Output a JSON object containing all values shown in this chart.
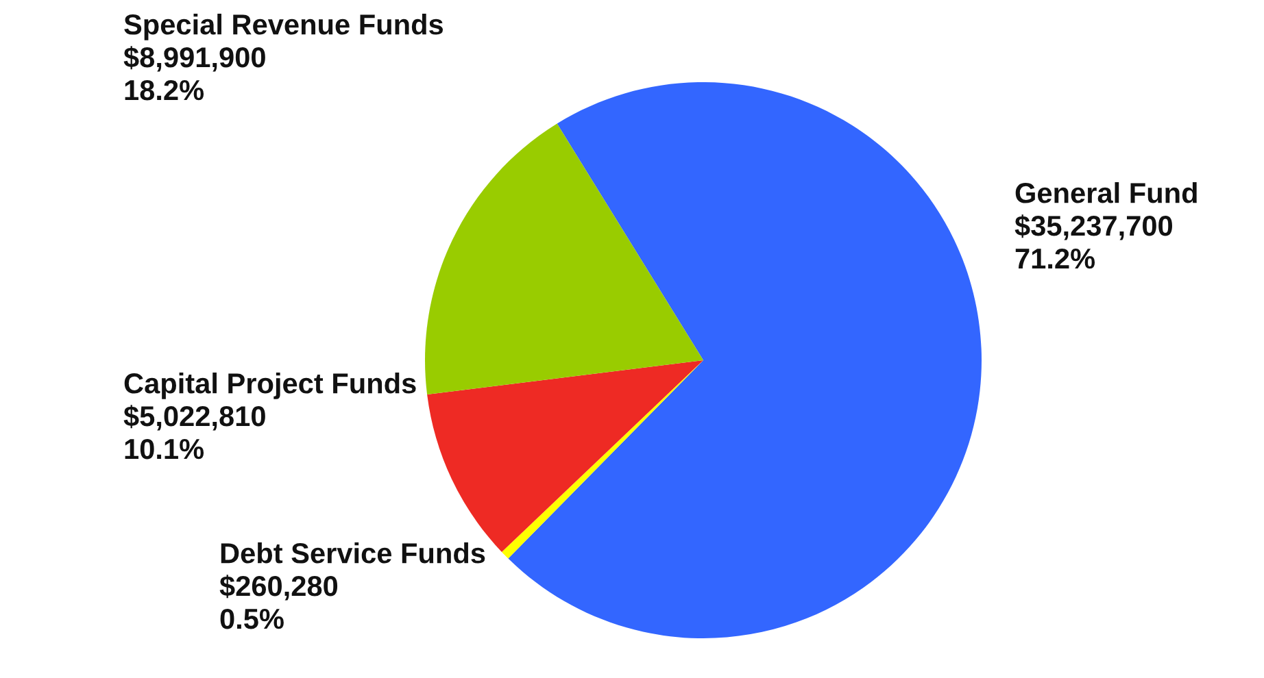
{
  "chart_data": {
    "type": "pie",
    "categories": [
      "General Fund",
      "Debt Service Funds",
      "Capital Project Funds",
      "Special Revenue Funds"
    ],
    "values": [
      35237700,
      260280,
      5022810,
      8991900
    ],
    "colors": [
      "#3366ff",
      "#ffff00",
      "#ee2a24",
      "#99cc00"
    ],
    "value_labels": [
      "$35,237,700\n71.2%",
      "$260,280\n0.5%",
      "$5,022,810\n10.1%",
      "$8,991,900\n18.2%"
    ],
    "legend": false
  }
}
